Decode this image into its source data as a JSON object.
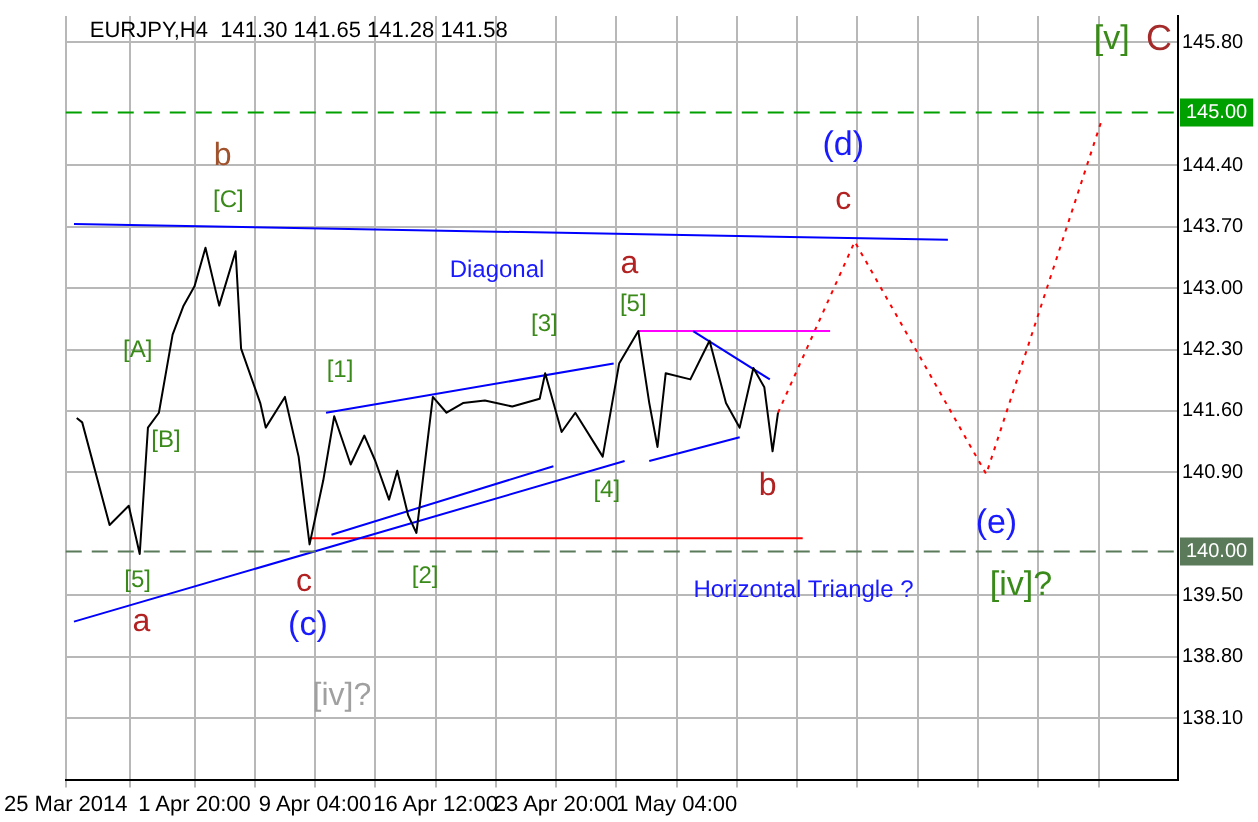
{
  "chart_data": {
    "type": "line",
    "title": "EURJPY,H4  141.30 141.65 141.28 141.58",
    "xlim": [
      "2014-03-25T00:00",
      "2014-05-31T16:00"
    ],
    "xticks": [
      {
        "value": "2014-03-25T00:00",
        "label": "25 Mar 2014"
      },
      {
        "value": "2014-03-28T22:00",
        "label": null
      },
      {
        "value": "2014-04-01T20:00",
        "label": "1 Apr 20:00"
      },
      {
        "value": "2014-04-05T12:00",
        "label": null
      },
      {
        "value": "2014-04-09T04:00",
        "label": "9 Apr 04:00"
      },
      {
        "value": "2014-04-12T20:00",
        "label": null
      },
      {
        "value": "2014-04-16T12:00",
        "label": "16 Apr 12:00"
      },
      {
        "value": "2014-04-20T04:00",
        "label": null
      },
      {
        "value": "2014-04-23T20:00",
        "label": "23 Apr 20:00"
      },
      {
        "value": "2014-04-27T12:00",
        "label": null
      },
      {
        "value": "2014-05-01T04:00",
        "label": "1 May 04:00"
      },
      {
        "value": "2014-05-04T20:00",
        "label": null
      },
      {
        "value": "2014-05-08T12:00",
        "label": null
      },
      {
        "value": "2014-05-12T04:00",
        "label": null
      },
      {
        "value": "2014-05-15T20:00",
        "label": null
      },
      {
        "value": "2014-05-19T12:00",
        "label": null
      },
      {
        "value": "2014-05-23T04:00",
        "label": null
      },
      {
        "value": "2014-05-26T20:00",
        "label": null
      }
    ],
    "ylim": [
      137.4,
      146.1
    ],
    "yticks": [
      {
        "value": 138.1,
        "label": "138.10"
      },
      {
        "value": 138.8,
        "label": "138.80"
      },
      {
        "value": 139.5,
        "label": "139.50"
      },
      {
        "value": 140.9,
        "label": "140.90"
      },
      {
        "value": 141.6,
        "label": "141.60"
      },
      {
        "value": 142.3,
        "label": "142.30"
      },
      {
        "value": 143.0,
        "label": "143.00"
      },
      {
        "value": 143.7,
        "label": "143.70"
      },
      {
        "value": 144.4,
        "label": "144.40"
      },
      {
        "value": 145.8,
        "label": "145.80"
      }
    ],
    "grid": true,
    "legend": false,
    "marker": "none",
    "series": [
      {
        "color": "#000000",
        "line_style": "solid",
        "x": [
          "2014-03-25T16:00",
          "2014-03-26T00:00",
          "2014-03-27T16:00",
          "2014-03-28T20:00",
          "2014-03-29T12:00",
          "2014-03-30T00:00",
          "2014-03-30T16:00",
          "2014-03-31T12:00",
          "2014-04-01T04:00",
          "2014-04-01T20:00",
          "2014-04-02T12:00",
          "2014-04-03T08:00",
          "2014-04-04T08:00",
          "2014-04-04T16:00",
          "2014-04-05T20:00",
          "2014-04-06T04:00",
          "2014-04-07T08:00",
          "2014-04-08T04:00",
          "2014-04-08T20:00",
          "2014-04-09T16:00",
          "2014-04-10T08:00",
          "2014-04-11T08:00",
          "2014-04-12T04:00",
          "2014-04-12T20:00",
          "2014-04-13T16:00",
          "2014-04-14T04:00",
          "2014-04-14T20:00",
          "2014-04-15T08:00",
          "2014-04-16T08:00",
          "2014-04-17T04:00",
          "2014-04-18T04:00",
          "2014-04-19T12:00",
          "2014-04-21T04:00",
          "2014-04-22T20:00",
          "2014-04-23T04:00",
          "2014-04-24T04:00",
          "2014-04-25T00:00",
          "2014-04-26T16:00",
          "2014-04-27T16:00",
          "2014-04-28T20:00",
          "2014-04-29T12:00",
          "2014-04-30T00:00",
          "2014-04-30T12:00",
          "2014-05-02T00:00",
          "2014-05-03T04:00",
          "2014-05-04T04:00",
          "2014-05-05T00:00",
          "2014-05-05T20:00",
          "2014-05-06T12:00",
          "2014-05-07T00:00",
          "2014-05-07T08:00"
        ],
        "values": [
          141.52,
          141.47,
          140.3,
          140.52,
          139.97,
          141.41,
          141.58,
          142.47,
          142.8,
          143.02,
          143.46,
          142.8,
          143.42,
          142.31,
          141.69,
          141.41,
          141.76,
          141.08,
          140.08,
          140.81,
          141.54,
          140.99,
          141.32,
          141.03,
          140.59,
          140.92,
          140.41,
          140.21,
          141.76,
          141.58,
          141.69,
          141.72,
          141.65,
          141.74,
          142.03,
          141.36,
          141.58,
          141.08,
          142.14,
          142.51,
          141.69,
          141.19,
          142.03,
          141.96,
          142.4,
          141.69,
          141.41,
          142.09,
          141.87,
          141.14,
          141.58
        ]
      },
      {
        "color": "#0000ff",
        "line_style": "solid",
        "x": [
          "2014-03-25T12:00",
          "2014-05-17T16:00"
        ],
        "values": [
          143.73,
          143.55
        ]
      },
      {
        "color": "#0000ff",
        "line_style": "solid",
        "x": [
          "2014-03-25T12:00",
          "2014-04-28T00:00"
        ],
        "values": [
          139.2,
          141.03
        ]
      },
      {
        "color": "#0000ff",
        "line_style": "solid",
        "x": [
          "2014-04-09T20:00",
          "2014-04-27T08:00"
        ],
        "values": [
          141.58,
          142.14
        ]
      },
      {
        "color": "#0000ff",
        "line_style": "solid",
        "x": [
          "2014-04-10T04:00",
          "2014-04-23T16:00"
        ],
        "values": [
          140.19,
          140.97
        ]
      },
      {
        "color": "#0000ff",
        "line_style": "solid",
        "x": [
          "2014-05-02T04:00",
          "2014-05-06T20:00"
        ],
        "values": [
          142.51,
          141.96
        ]
      },
      {
        "color": "#0000ff",
        "line_style": "solid",
        "x": [
          "2014-04-29T12:00",
          "2014-05-05T00:00"
        ],
        "values": [
          141.03,
          141.3
        ]
      },
      {
        "color": "#ff0000",
        "line_style": "solid",
        "x": [
          "2014-04-08T20:00",
          "2014-05-08T20:00"
        ],
        "values": [
          140.15,
          140.15
        ]
      },
      {
        "color": "#ff00ff",
        "line_style": "solid",
        "x": [
          "2014-04-28T20:00",
          "2014-05-10T12:00"
        ],
        "values": [
          142.51,
          142.51
        ]
      },
      {
        "color": "#ff0000",
        "line_style": "dotted",
        "x": [
          "2014-05-07T08:00",
          "2014-05-12T00:00",
          "2014-05-20T00:00",
          "2014-05-27T00:00"
        ],
        "values": [
          141.58,
          143.53,
          140.88,
          144.9
        ]
      }
    ],
    "ref_lines": [
      {
        "axis": "y",
        "value": 145.0,
        "label": "145.00",
        "color": "#00a000",
        "line_style": "dashed"
      },
      {
        "axis": "y",
        "value": 140.0,
        "label": "140.00",
        "color": "#5a7a5a",
        "line_style": "dashed"
      }
    ],
    "annotations": [
      "b",
      "[C]",
      "[A]",
      "[B]",
      "[5]",
      "a",
      "c",
      "(c)",
      "[iv]?",
      "[1]",
      "[2]",
      "[3]",
      "Diagonal",
      "a",
      "[5]",
      "[4]",
      "b",
      "c",
      "(d)",
      "(e)",
      "[iv]?",
      "Horizontal Triangle ?",
      "[v]",
      "C"
    ]
  }
}
